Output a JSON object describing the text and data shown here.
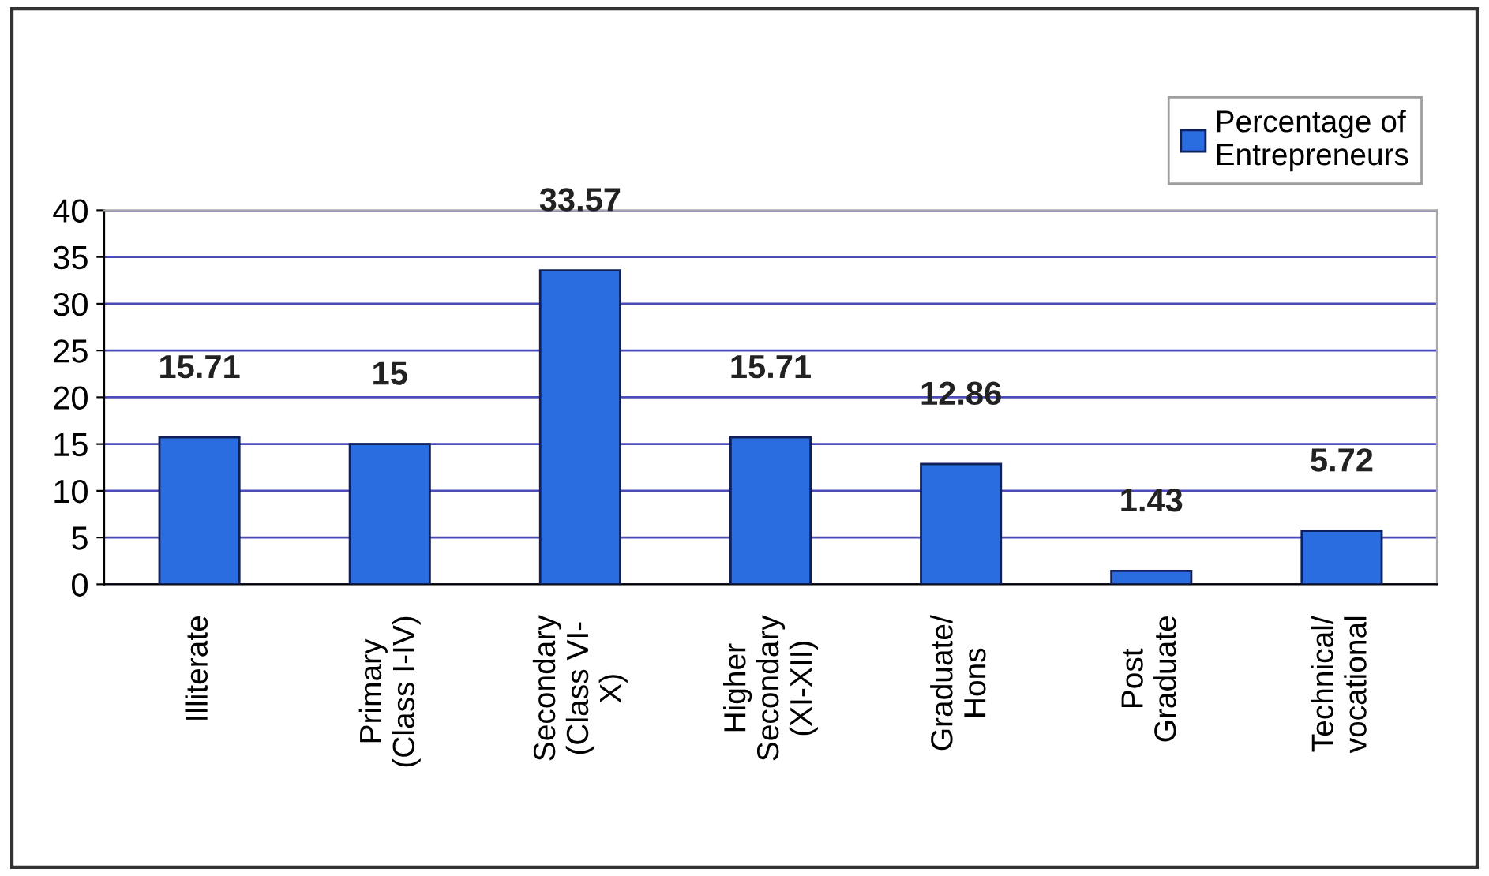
{
  "chart_data": {
    "type": "bar",
    "categories": [
      "Illiterate",
      "Primary\n(Class I-IV)",
      "Secondary\n(Class VI-\nX)",
      "Higher\nSecondary\n(XI-XII)",
      "Graduate/\nHons",
      "Post\nGraduate",
      "Technical/\nvocational"
    ],
    "series": [
      {
        "name": "Percentage of\nEntrepreneurs",
        "color": "#2a6de0",
        "values": [
          15.71,
          15,
          33.57,
          15.71,
          12.86,
          1.43,
          5.72
        ]
      }
    ],
    "ylim": [
      0,
      40
    ],
    "yticks": [
      0,
      5,
      10,
      15,
      20,
      25,
      30,
      35,
      40
    ],
    "grid": "y",
    "legend": "top right",
    "data_labels": true
  }
}
